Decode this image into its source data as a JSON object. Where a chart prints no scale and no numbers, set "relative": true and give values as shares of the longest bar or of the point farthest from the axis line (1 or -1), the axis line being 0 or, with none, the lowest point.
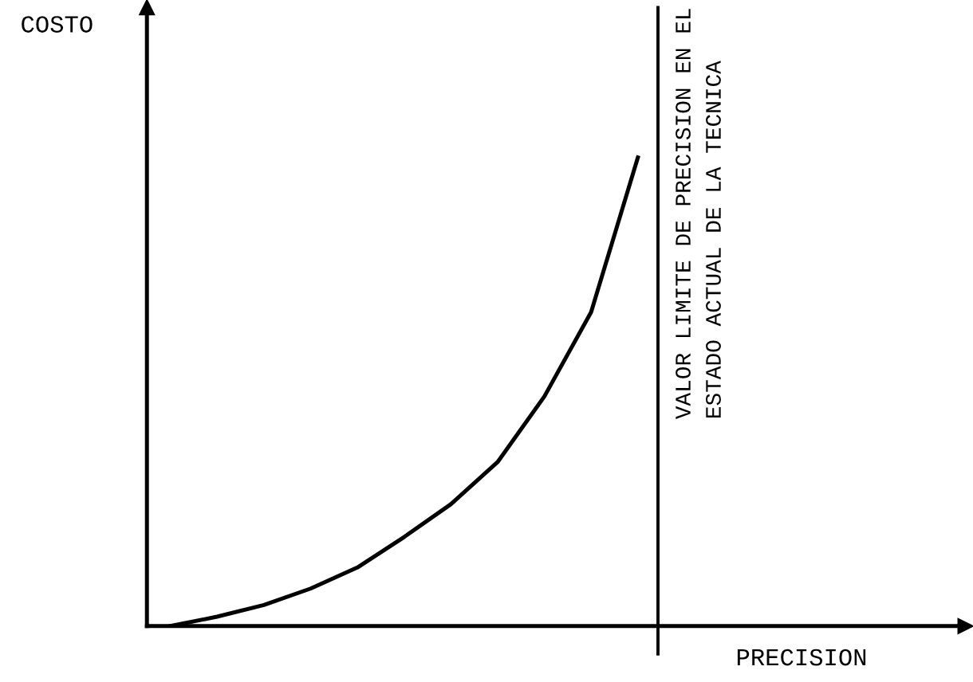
{
  "chart_data": {
    "type": "line",
    "relative": true,
    "xlabel": "PRECISION",
    "annotations": [
      "COSTO",
      "VALOR LIMITE DE PRECISION EN EL\nESTADO ACTUAL DE LA TECNICA"
    ],
    "categories": [
      null,
      null,
      null,
      null,
      null,
      null,
      null,
      null,
      null,
      null,
      null
    ],
    "series": [
      {
        "color": "#000000",
        "values": [
          0,
          0.02,
          0.045,
          0.08,
          0.125,
          0.19,
          0.26,
          0.35,
          0.49,
          0.67,
          1
        ]
      }
    ],
    "grid": false,
    "legend": false,
    "marker": "none",
    "line_style": "solid"
  }
}
